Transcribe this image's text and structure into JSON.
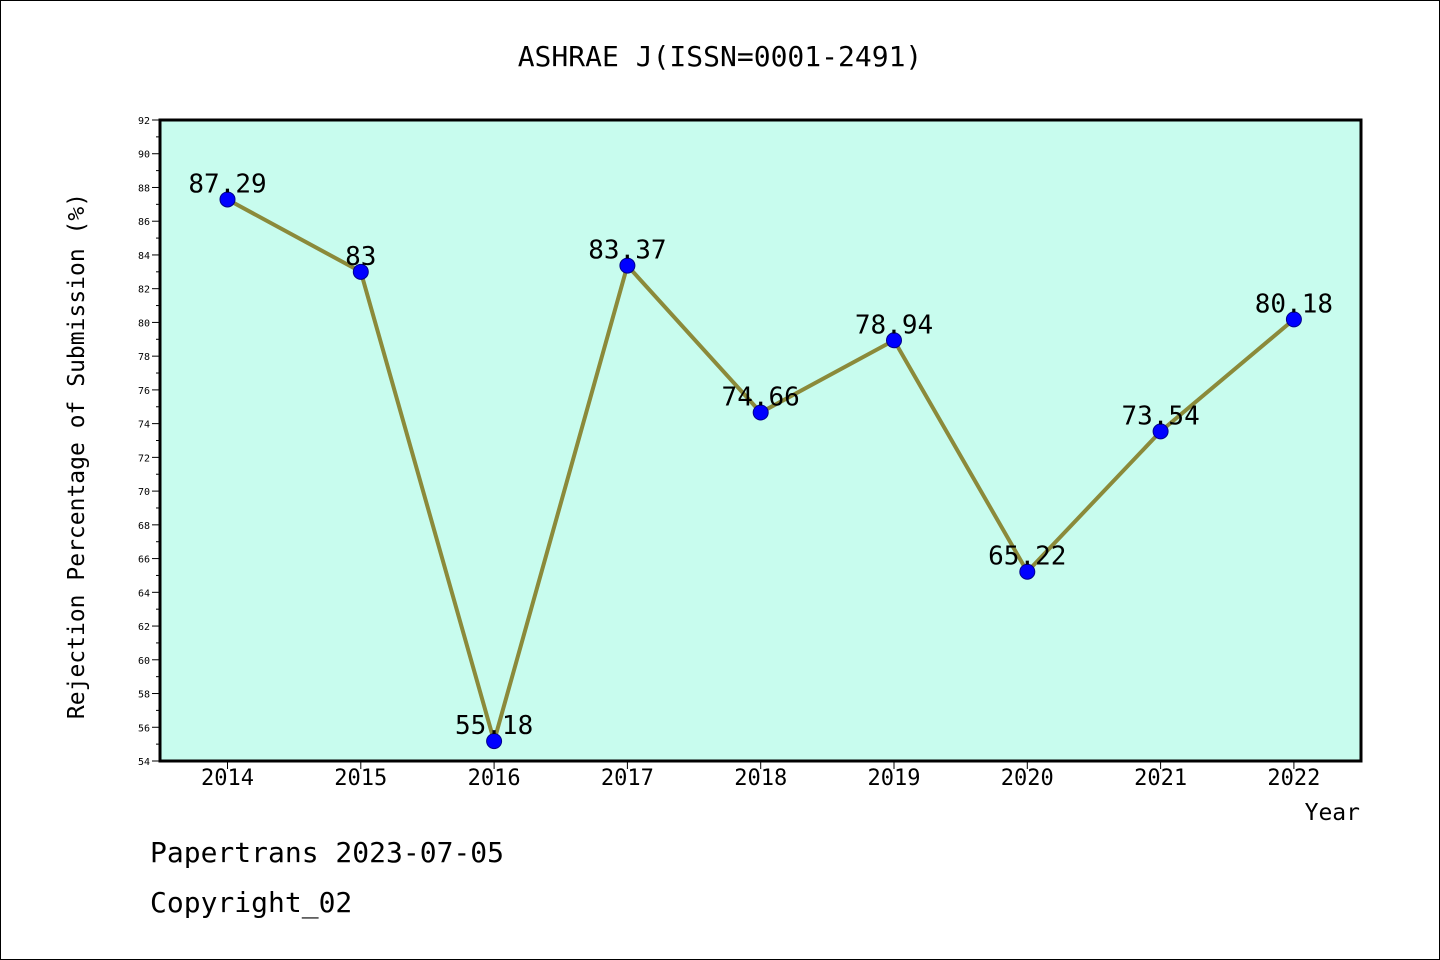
{
  "chart_data": {
    "type": "line",
    "title": "ASHRAE J(ISSN=0001-2491)",
    "xlabel": "Year",
    "ylabel": "Rejection Percentage of Submission (%)",
    "categories": [
      "2014",
      "2015",
      "2016",
      "2017",
      "2018",
      "2019",
      "2020",
      "2021",
      "2022"
    ],
    "values": [
      87.29,
      83,
      55.18,
      83.37,
      74.66,
      78.94,
      65.22,
      73.54,
      80.18
    ],
    "data_labels": [
      "87.29",
      "83",
      "55.18",
      "83.37",
      "74.66",
      "78.94",
      "65.22",
      "73.54",
      "80.18"
    ],
    "ylim": [
      54,
      92
    ],
    "yticks": [
      "54",
      "56",
      "58",
      "60",
      "62",
      "64",
      "66",
      "68",
      "70",
      "72",
      "74",
      "76",
      "78",
      "80",
      "82",
      "84",
      "86",
      "88",
      "90",
      "92"
    ],
    "grid": false,
    "colors": {
      "plot_background": "#c8fcee",
      "line": "#8b8a3a",
      "marker_fill": "#0000ff",
      "marker_edge": "#00008b"
    }
  },
  "footer": {
    "line1": "Papertrans 2023-07-05",
    "line2": "Copyright_02"
  }
}
